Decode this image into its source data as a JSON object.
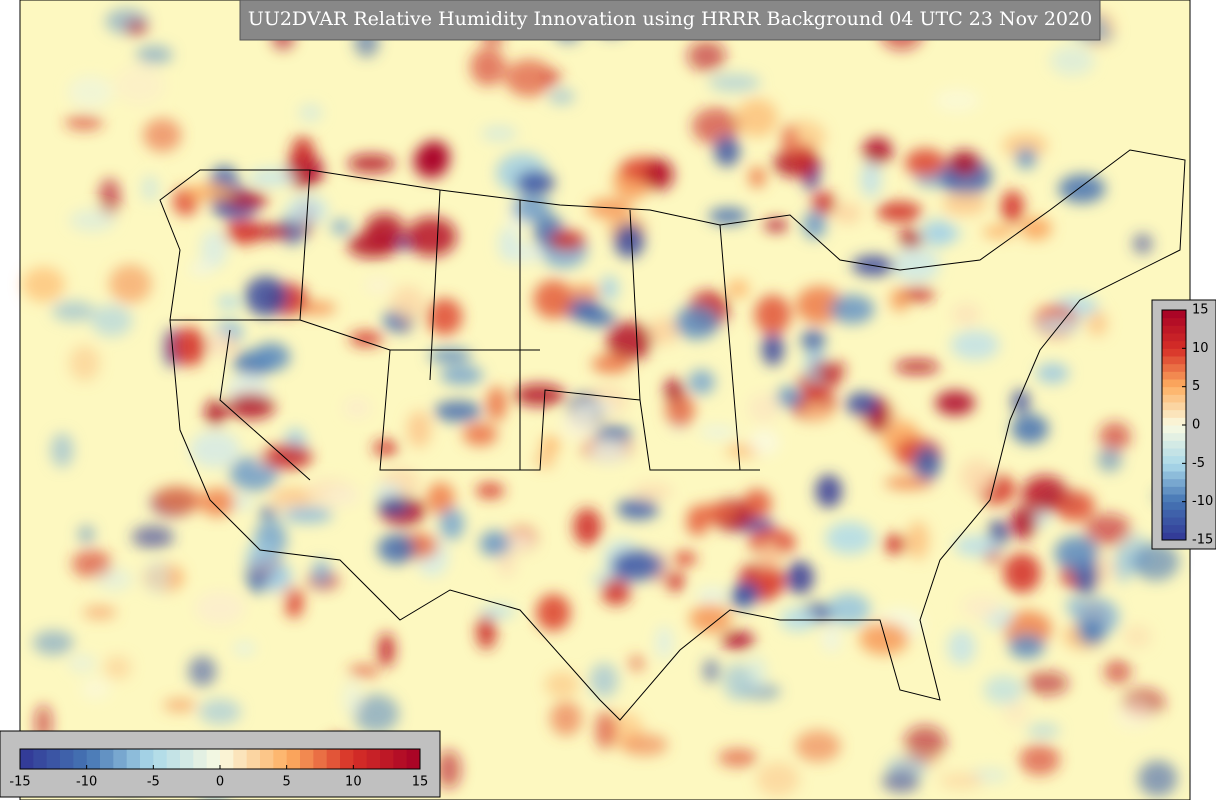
{
  "title": "UU2DVAR Relative Humidity Innovation using HRRR Background 04 UTC 23 Nov 2020",
  "colorbars": [
    {
      "orientation": "horizontal",
      "lim": [
        -15,
        15
      ],
      "ticks": [
        -15,
        -10,
        -5,
        0,
        5,
        10,
        15
      ]
    },
    {
      "orientation": "vertical",
      "lim": [
        -15,
        15
      ],
      "ticks": [
        15,
        10,
        5,
        0,
        -5,
        -10,
        -15
      ]
    }
  ]
}
